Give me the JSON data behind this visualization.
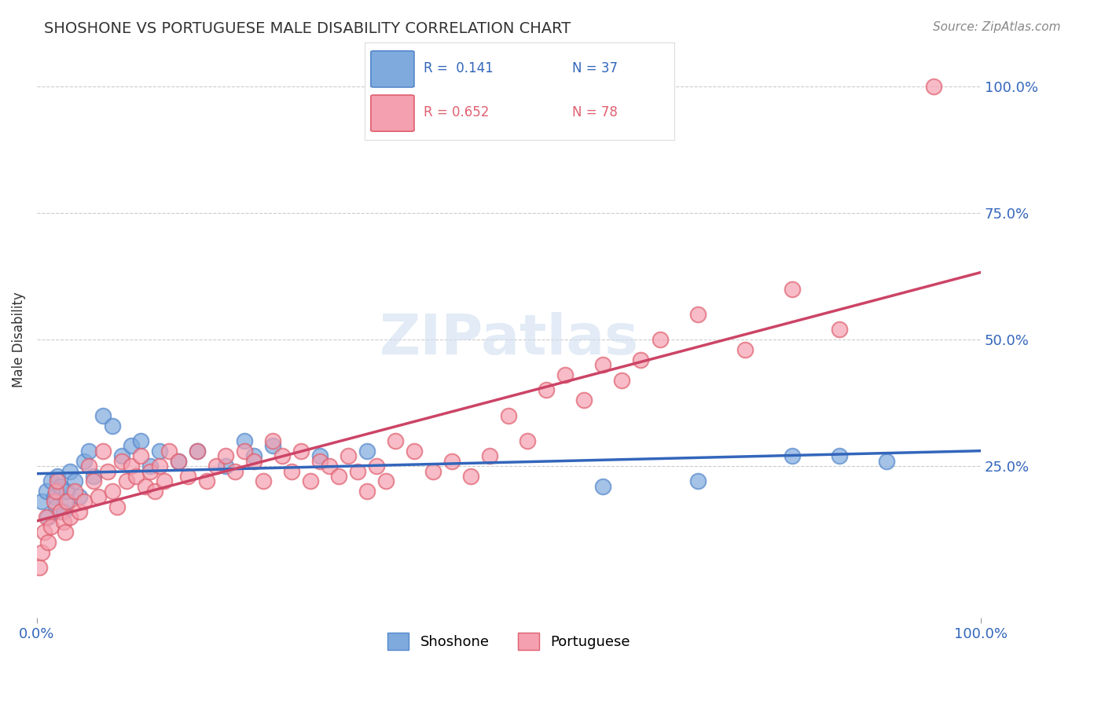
{
  "title": "SHOSHONE VS PORTUGUESE MALE DISABILITY CORRELATION CHART",
  "source_text": "Source: ZipAtlas.com",
  "xlabel": "",
  "ylabel": "Male Disability",
  "xlim": [
    0,
    100
  ],
  "ylim": [
    -5,
    105
  ],
  "x_tick_labels": [
    "0.0%",
    "100.0%"
  ],
  "y_tick_labels_right": [
    "25.0%",
    "50.0%",
    "75.0%",
    "100.0%"
  ],
  "y_tick_positions": [
    25,
    50,
    75,
    100
  ],
  "shoshone_color": "#7faadd",
  "shoshone_edge_color": "#5588cc",
  "portuguese_color": "#f4a0b0",
  "portuguese_edge_color": "#e06070",
  "shoshone_R": 0.141,
  "shoshone_N": 37,
  "portuguese_R": 0.652,
  "portuguese_N": 78,
  "shoshone_line_color": "#3366bb",
  "portuguese_line_color": "#cc4466",
  "legend_label_1": "R =  0.141   N = 37",
  "legend_label_2": "R = 0.652   N = 78",
  "watermark": "ZIPatlas",
  "background_color": "#ffffff",
  "shoshone_x": [
    0.5,
    1.0,
    1.2,
    1.5,
    1.8,
    2.0,
    2.2,
    2.5,
    2.8,
    3.0,
    3.2,
    3.5,
    4.0,
    4.5,
    5.0,
    5.5,
    6.0,
    7.0,
    8.0,
    9.0,
    10.0,
    11.0,
    12.0,
    13.0,
    15.0,
    17.0,
    20.0,
    22.0,
    23.0,
    25.0,
    30.0,
    35.0,
    60.0,
    70.0,
    80.0,
    85.0,
    90.0
  ],
  "shoshone_y": [
    18,
    20,
    15,
    22,
    19,
    17,
    23,
    21,
    16,
    18,
    20,
    24,
    22,
    19,
    26,
    28,
    23,
    35,
    33,
    27,
    29,
    30,
    25,
    28,
    26,
    28,
    25,
    30,
    27,
    29,
    27,
    28,
    21,
    22,
    27,
    27,
    26
  ],
  "portuguese_x": [
    0.3,
    0.5,
    0.8,
    1.0,
    1.2,
    1.5,
    1.8,
    2.0,
    2.2,
    2.5,
    2.8,
    3.0,
    3.2,
    3.5,
    4.0,
    4.5,
    5.0,
    5.5,
    6.0,
    6.5,
    7.0,
    7.5,
    8.0,
    8.5,
    9.0,
    9.5,
    10.0,
    10.5,
    11.0,
    11.5,
    12.0,
    12.5,
    13.0,
    13.5,
    14.0,
    15.0,
    16.0,
    17.0,
    18.0,
    19.0,
    20.0,
    21.0,
    22.0,
    23.0,
    24.0,
    25.0,
    26.0,
    27.0,
    28.0,
    29.0,
    30.0,
    31.0,
    32.0,
    33.0,
    34.0,
    35.0,
    36.0,
    37.0,
    38.0,
    40.0,
    42.0,
    44.0,
    46.0,
    48.0,
    50.0,
    52.0,
    54.0,
    56.0,
    58.0,
    60.0,
    62.0,
    64.0,
    66.0,
    70.0,
    75.0,
    80.0,
    85.0,
    95.0
  ],
  "portuguese_y": [
    5,
    8,
    12,
    15,
    10,
    13,
    18,
    20,
    22,
    16,
    14,
    12,
    18,
    15,
    20,
    16,
    18,
    25,
    22,
    19,
    28,
    24,
    20,
    17,
    26,
    22,
    25,
    23,
    27,
    21,
    24,
    20,
    25,
    22,
    28,
    26,
    23,
    28,
    22,
    25,
    27,
    24,
    28,
    26,
    22,
    30,
    27,
    24,
    28,
    22,
    26,
    25,
    23,
    27,
    24,
    20,
    25,
    22,
    30,
    28,
    24,
    26,
    23,
    27,
    35,
    30,
    40,
    43,
    38,
    45,
    42,
    46,
    50,
    55,
    48,
    60,
    52,
    100
  ]
}
